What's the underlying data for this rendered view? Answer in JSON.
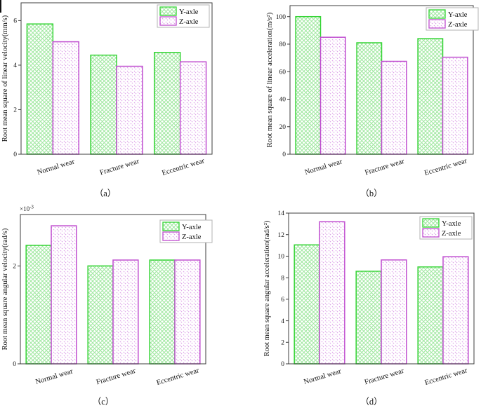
{
  "figure_title": "",
  "colors": {
    "background": "#ffffff",
    "y_axle_border": "#35d435",
    "y_axle_hatch": "#9fe89f",
    "z_axle_border": "#c04fd0",
    "z_axle_hatch": "#dda0e8",
    "axis": "#3c3c3c",
    "text": "#111111",
    "legend_border": "#b3b3b3"
  },
  "legend_labels": [
    "Y-axle",
    "Z-axle"
  ],
  "chart_data": [
    {
      "id": "a",
      "type": "bar",
      "caption": "（a）",
      "ylabel": "Root mean square of linear velocity(mm/s)",
      "xlabel": "",
      "categories": [
        "Normal wear",
        "Fracture wear",
        "Eccentric wear"
      ],
      "series": [
        {
          "name": "Y-axle",
          "values": [
            5.85,
            4.45,
            4.57
          ]
        },
        {
          "name": "Z-axle",
          "values": [
            5.05,
            3.95,
            4.15
          ]
        }
      ],
      "ylim": [
        0,
        6.8
      ],
      "yticks": [
        0,
        2,
        4,
        6
      ],
      "grid": false,
      "legend_position": "top-right"
    },
    {
      "id": "b",
      "type": "bar",
      "caption": "（b）",
      "ylabel": "Root mean square of linear acceleration(m/s²)",
      "xlabel": "",
      "categories": [
        "Normal wear",
        "Fracture wear",
        "Eccentric wear"
      ],
      "series": [
        {
          "name": "Y-axle",
          "values": [
            100,
            81,
            84
          ]
        },
        {
          "name": "Z-axle",
          "values": [
            85,
            67.5,
            70.5
          ]
        }
      ],
      "ylim": [
        0,
        108
      ],
      "yticks": [
        0,
        20,
        40,
        60,
        80,
        100
      ],
      "grid": false,
      "legend_position": "top-right"
    },
    {
      "id": "c",
      "type": "bar",
      "caption": "（c）",
      "ylabel": "Root mean square angular velocity(rad/s)",
      "xlabel": "",
      "y_multiplier": "×10^-3",
      "categories": [
        "Normal wear",
        "Fracture wear",
        "Eccentric wear"
      ],
      "series": [
        {
          "name": "Y-axle",
          "values": [
            2.42,
            2.0,
            2.12
          ]
        },
        {
          "name": "Z-axle",
          "values": [
            2.82,
            2.12,
            2.12
          ]
        }
      ],
      "ylim": [
        0,
        3.05
      ],
      "yticks": [
        0,
        2
      ],
      "grid": false,
      "legend_position": "top-right"
    },
    {
      "id": "d",
      "type": "bar",
      "caption": "（d）",
      "ylabel": "Root mean square angular acceleration(rad/s²)",
      "xlabel": "",
      "categories": [
        "Normal wear",
        "Fracture wear",
        "Eccentric wear"
      ],
      "series": [
        {
          "name": "Y-axle",
          "values": [
            11.05,
            8.6,
            9.0
          ]
        },
        {
          "name": "Z-axle",
          "values": [
            13.2,
            9.65,
            9.95
          ]
        }
      ],
      "ylim": [
        0,
        14
      ],
      "yticks": [
        0,
        2,
        4,
        6,
        8,
        10,
        12,
        14
      ],
      "grid": false,
      "legend_position": "top-right"
    }
  ]
}
